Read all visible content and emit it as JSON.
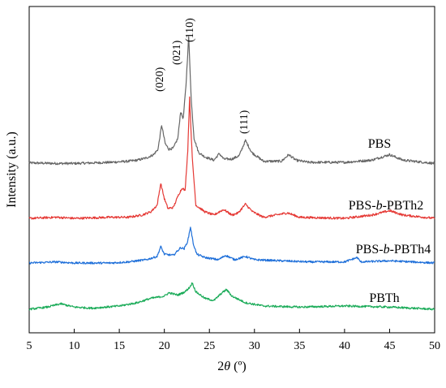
{
  "chart_data": {
    "type": "line",
    "title": "",
    "xlabel_parts": [
      "2",
      "θ",
      " (º)"
    ],
    "ylabel": "Intensity (a.u.)",
    "xlim": [
      5,
      50
    ],
    "xticks": [
      5,
      10,
      15,
      20,
      25,
      30,
      35,
      40,
      45,
      50
    ],
    "y_axis_ticks": false,
    "grid": false,
    "peak_labels": [
      {
        "text": "(020)",
        "x": 19.7
      },
      {
        "text": "(021)",
        "x": 21.8
      },
      {
        "text": "(110)",
        "x": 22.6
      },
      {
        "text": "(111)",
        "x": 29.0
      }
    ],
    "series": [
      {
        "name": "PBS",
        "label_parts": [
          "PBS"
        ],
        "color": "#666666",
        "baseline": 0.0,
        "noise": 1.1,
        "points": [
          [
            5,
            -0.5
          ],
          [
            8,
            -1
          ],
          [
            10,
            -1
          ],
          [
            12,
            -0.5
          ],
          [
            14,
            0
          ],
          [
            16,
            1
          ],
          [
            17,
            2
          ],
          [
            18,
            4
          ],
          [
            18.8,
            7
          ],
          [
            19.3,
            12
          ],
          [
            19.7,
            34
          ],
          [
            20.1,
            17
          ],
          [
            20.5,
            12
          ],
          [
            21,
            13
          ],
          [
            21.5,
            22
          ],
          [
            21.8,
            46
          ],
          [
            22.1,
            40
          ],
          [
            22.4,
            70
          ],
          [
            22.7,
            115
          ],
          [
            23.0,
            55
          ],
          [
            23.3,
            22
          ],
          [
            23.8,
            9
          ],
          [
            24.5,
            5
          ],
          [
            25.5,
            2
          ],
          [
            26.1,
            8
          ],
          [
            26.6,
            3
          ],
          [
            27.5,
            3
          ],
          [
            28.3,
            6
          ],
          [
            29.0,
            20
          ],
          [
            29.7,
            9
          ],
          [
            31,
            1
          ],
          [
            33,
            1
          ],
          [
            33.8,
            7
          ],
          [
            34.6,
            2
          ],
          [
            36,
            0
          ],
          [
            40,
            0
          ],
          [
            43,
            2
          ],
          [
            45,
            7
          ],
          [
            46.5,
            2
          ],
          [
            50,
            -1
          ]
        ]
      },
      {
        "name": "PBS-b-PBTh2",
        "label_parts": [
          "PBS-",
          "b",
          "-PBTh2"
        ],
        "color": "#e53935",
        "baseline": 0.0,
        "noise": 1.0,
        "points": [
          [
            5,
            0
          ],
          [
            8,
            1
          ],
          [
            10,
            0
          ],
          [
            14,
            1
          ],
          [
            16,
            1
          ],
          [
            17.5,
            3
          ],
          [
            18.5,
            6
          ],
          [
            19.2,
            12
          ],
          [
            19.6,
            32
          ],
          [
            20.0,
            18
          ],
          [
            20.4,
            9
          ],
          [
            21,
            10
          ],
          [
            21.6,
            22
          ],
          [
            22.0,
            28
          ],
          [
            22.3,
            25
          ],
          [
            22.6,
            62
          ],
          [
            22.8,
            110
          ],
          [
            23.1,
            55
          ],
          [
            23.5,
            12
          ],
          [
            24.5,
            6
          ],
          [
            25.5,
            3
          ],
          [
            26.1,
            6
          ],
          [
            26.6,
            8
          ],
          [
            27.5,
            3
          ],
          [
            28.2,
            5
          ],
          [
            29.0,
            13
          ],
          [
            29.8,
            6
          ],
          [
            31,
            1
          ],
          [
            33.7,
            5
          ],
          [
            35,
            1
          ],
          [
            40,
            0
          ],
          [
            43,
            3
          ],
          [
            45,
            7
          ],
          [
            46.5,
            3
          ],
          [
            50,
            0
          ]
        ]
      },
      {
        "name": "PBS-b-PBTh4",
        "label_parts": [
          "PBS-",
          "b",
          "-PBTh4"
        ],
        "color": "#1e6fd9",
        "baseline": 0.0,
        "noise": 0.9,
        "points": [
          [
            5,
            0
          ],
          [
            8,
            1
          ],
          [
            10,
            0
          ],
          [
            14,
            0
          ],
          [
            16,
            1
          ],
          [
            18,
            3
          ],
          [
            19.2,
            6
          ],
          [
            19.6,
            15
          ],
          [
            20.0,
            8
          ],
          [
            21,
            7
          ],
          [
            21.8,
            14
          ],
          [
            22.2,
            13
          ],
          [
            22.6,
            20
          ],
          [
            22.9,
            33
          ],
          [
            23.2,
            18
          ],
          [
            23.6,
            8
          ],
          [
            24.5,
            5
          ],
          [
            26,
            3
          ],
          [
            26.8,
            7
          ],
          [
            27.8,
            3
          ],
          [
            29.0,
            6
          ],
          [
            30,
            3
          ],
          [
            33,
            2
          ],
          [
            36,
            1
          ],
          [
            40,
            1
          ],
          [
            41.4,
            5
          ],
          [
            41.8,
            1
          ],
          [
            45,
            2
          ],
          [
            50,
            0
          ]
        ]
      },
      {
        "name": "PBTh",
        "label_parts": [
          "PBTh"
        ],
        "color": "#1aab58",
        "baseline": 0.0,
        "noise": 0.9,
        "points": [
          [
            5,
            0
          ],
          [
            7,
            2
          ],
          [
            8.5,
            5
          ],
          [
            10,
            2
          ],
          [
            12,
            1
          ],
          [
            15,
            3
          ],
          [
            17,
            6
          ],
          [
            18.5,
            10
          ],
          [
            20,
            12
          ],
          [
            20.5,
            15
          ],
          [
            21.5,
            13
          ],
          [
            22.3,
            16
          ],
          [
            22.8,
            20
          ],
          [
            23.1,
            24
          ],
          [
            23.5,
            16
          ],
          [
            24.5,
            10
          ],
          [
            25.5,
            8
          ],
          [
            26.4,
            15
          ],
          [
            26.9,
            18
          ],
          [
            27.5,
            12
          ],
          [
            29,
            6
          ],
          [
            31,
            3
          ],
          [
            35,
            2
          ],
          [
            40,
            3
          ],
          [
            45,
            2
          ],
          [
            50,
            0
          ]
        ]
      }
    ]
  }
}
